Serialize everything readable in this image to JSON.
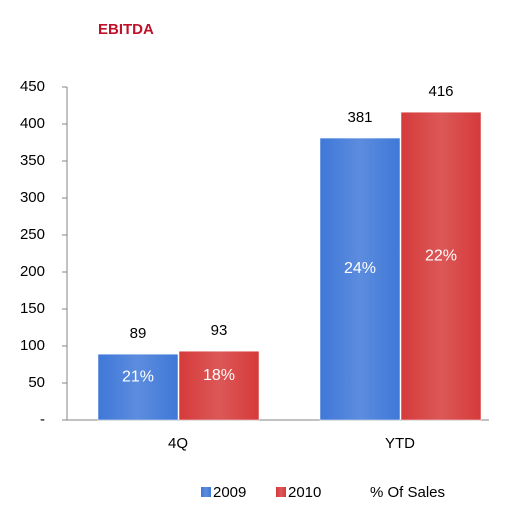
{
  "chart_data": {
    "type": "bar",
    "title": "EBITDA",
    "categories": [
      "4Q",
      "YTD"
    ],
    "series": [
      {
        "name": "2009",
        "color": "#3f78d8",
        "values": [
          89,
          381
        ],
        "pct_values": [
          21,
          24
        ],
        "pct_labels": [
          "21%",
          "24%"
        ]
      },
      {
        "name": "2010",
        "color": "#d63a3a",
        "values": [
          93,
          416
        ],
        "pct_values": [
          18,
          22
        ],
        "pct_labels": [
          "18%",
          "22%"
        ]
      }
    ],
    "pct_legend": "% Of Sales",
    "ylim": [
      0,
      450
    ],
    "yticks": [
      {
        "value": 0,
        "label": "-"
      },
      50,
      100,
      150,
      200,
      250,
      300,
      350,
      400,
      450
    ],
    "grid": false
  }
}
